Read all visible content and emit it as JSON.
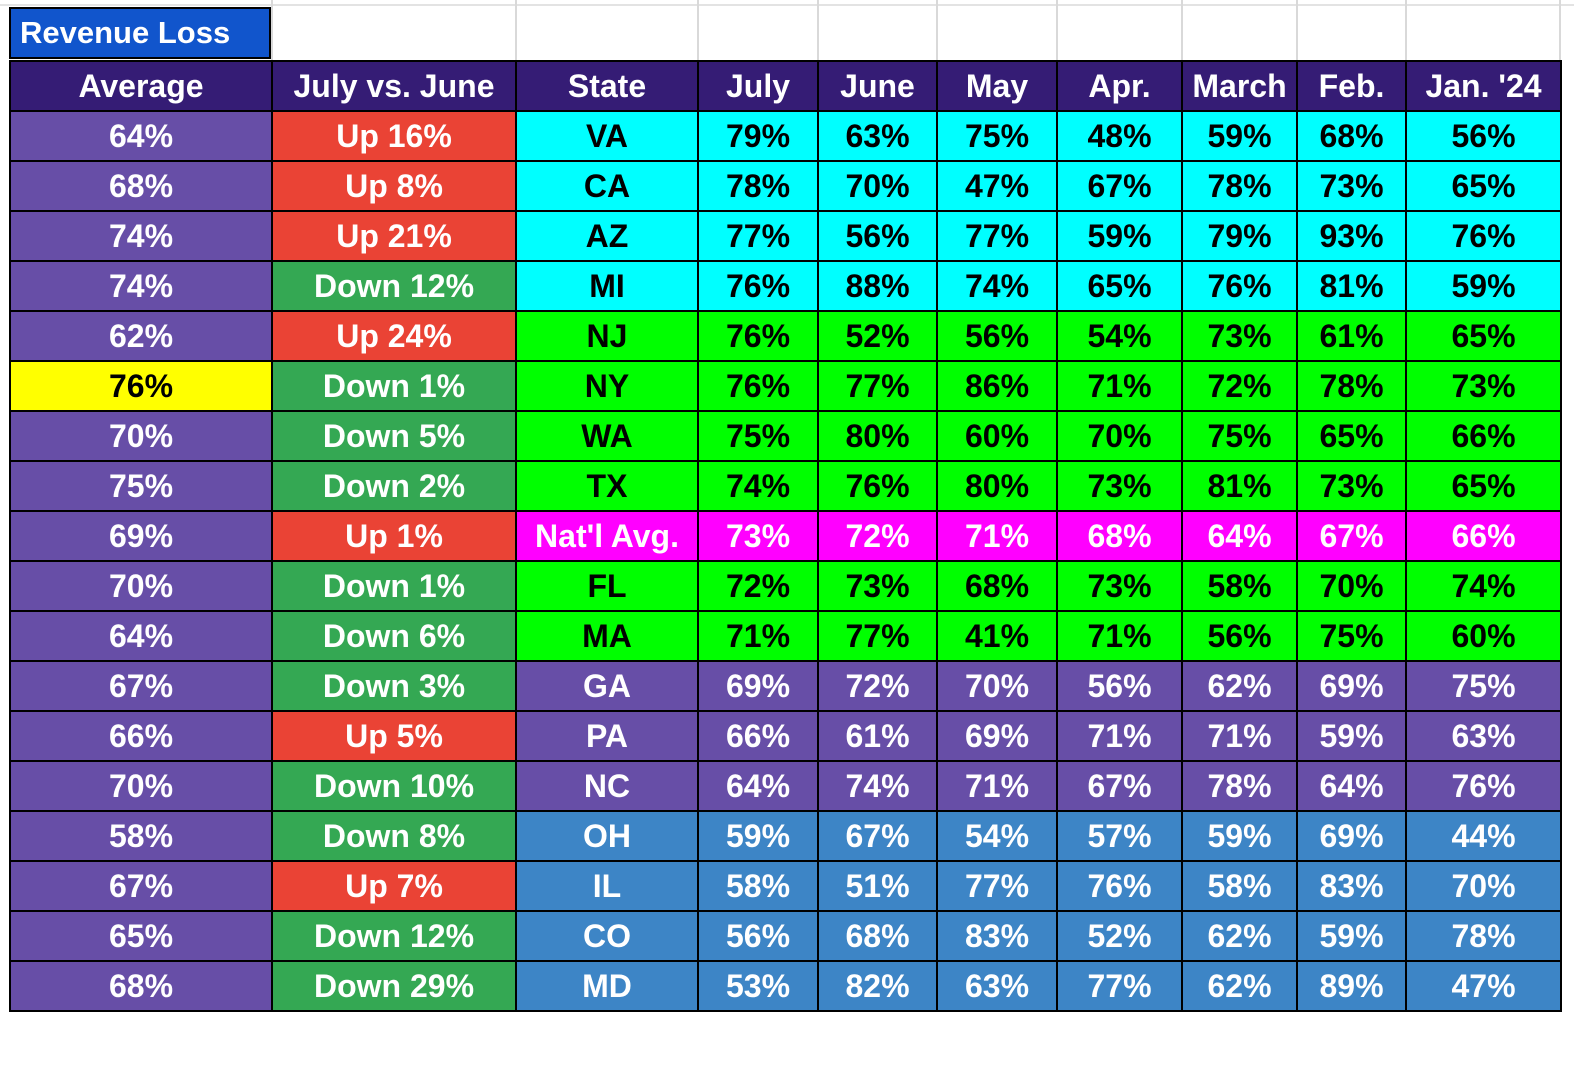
{
  "title": "Revenue Loss",
  "headers": [
    "Average",
    "July vs. June",
    "State",
    "July",
    "June",
    "May",
    "Apr.",
    "March",
    "Feb.",
    "Jan. '24"
  ],
  "colors": {
    "header": "#351c75",
    "average": "#674ea7",
    "average_highlight": "#ffff00",
    "up": "#ea4335",
    "down": "#34a853",
    "cyan": "#00ffff",
    "green": "#00ff00",
    "magenta": "#ff00ff",
    "purple": "#674ea7",
    "blue": "#3d85c6"
  },
  "rows": [
    {
      "avg": "64%",
      "change": "Up 16%",
      "dir": "up",
      "state": "VA",
      "group": "cyan",
      "months": [
        "79%",
        "63%",
        "75%",
        "48%",
        "59%",
        "68%",
        "56%"
      ]
    },
    {
      "avg": "68%",
      "change": "Up 8%",
      "dir": "up",
      "state": "CA",
      "group": "cyan",
      "months": [
        "78%",
        "70%",
        "47%",
        "67%",
        "78%",
        "73%",
        "65%"
      ]
    },
    {
      "avg": "74%",
      "change": "Up 21%",
      "dir": "up",
      "state": "AZ",
      "group": "cyan",
      "months": [
        "77%",
        "56%",
        "77%",
        "59%",
        "79%",
        "93%",
        "76%"
      ]
    },
    {
      "avg": "74%",
      "change": "Down 12%",
      "dir": "down",
      "state": "MI",
      "group": "cyan",
      "months": [
        "76%",
        "88%",
        "74%",
        "65%",
        "76%",
        "81%",
        "59%"
      ]
    },
    {
      "avg": "62%",
      "change": "Up 24%",
      "dir": "up",
      "state": "NJ",
      "group": "green",
      "months": [
        "76%",
        "52%",
        "56%",
        "54%",
        "73%",
        "61%",
        "65%"
      ]
    },
    {
      "avg": "76%",
      "change": "Down 1%",
      "dir": "down",
      "state": "NY",
      "group": "green",
      "highlight": true,
      "months": [
        "76%",
        "77%",
        "86%",
        "71%",
        "72%",
        "78%",
        "73%"
      ]
    },
    {
      "avg": "70%",
      "change": "Down 5%",
      "dir": "down",
      "state": "WA",
      "group": "green",
      "months": [
        "75%",
        "80%",
        "60%",
        "70%",
        "75%",
        "65%",
        "66%"
      ]
    },
    {
      "avg": "75%",
      "change": "Down 2%",
      "dir": "down",
      "state": "TX",
      "group": "green",
      "months": [
        "74%",
        "76%",
        "80%",
        "73%",
        "81%",
        "73%",
        "65%"
      ]
    },
    {
      "avg": "69%",
      "change": "Up 1%",
      "dir": "up",
      "state": "Nat'l Avg.",
      "group": "magenta",
      "months": [
        "73%",
        "72%",
        "71%",
        "68%",
        "64%",
        "67%",
        "66%"
      ]
    },
    {
      "avg": "70%",
      "change": "Down 1%",
      "dir": "down",
      "state": "FL",
      "group": "green",
      "months": [
        "72%",
        "73%",
        "68%",
        "73%",
        "58%",
        "70%",
        "74%"
      ]
    },
    {
      "avg": "64%",
      "change": "Down 6%",
      "dir": "down",
      "state": "MA",
      "group": "green",
      "months": [
        "71%",
        "77%",
        "41%",
        "71%",
        "56%",
        "75%",
        "60%"
      ]
    },
    {
      "avg": "67%",
      "change": "Down 3%",
      "dir": "down",
      "state": "GA",
      "group": "purple",
      "months": [
        "69%",
        "72%",
        "70%",
        "56%",
        "62%",
        "69%",
        "75%"
      ]
    },
    {
      "avg": "66%",
      "change": "Up 5%",
      "dir": "up",
      "state": "PA",
      "group": "purple",
      "months": [
        "66%",
        "61%",
        "69%",
        "71%",
        "71%",
        "59%",
        "63%"
      ]
    },
    {
      "avg": "70%",
      "change": "Down 10%",
      "dir": "down",
      "state": "NC",
      "group": "purple",
      "months": [
        "64%",
        "74%",
        "71%",
        "67%",
        "78%",
        "64%",
        "76%"
      ]
    },
    {
      "avg": "58%",
      "change": "Down 8%",
      "dir": "down",
      "state": "OH",
      "group": "blue",
      "months": [
        "59%",
        "67%",
        "54%",
        "57%",
        "59%",
        "69%",
        "44%"
      ]
    },
    {
      "avg": "67%",
      "change": "Up 7%",
      "dir": "up",
      "state": "IL",
      "group": "blue",
      "months": [
        "58%",
        "51%",
        "77%",
        "76%",
        "58%",
        "83%",
        "70%"
      ]
    },
    {
      "avg": "65%",
      "change": "Down 12%",
      "dir": "down",
      "state": "CO",
      "group": "blue",
      "months": [
        "56%",
        "68%",
        "83%",
        "52%",
        "62%",
        "59%",
        "78%"
      ]
    },
    {
      "avg": "68%",
      "change": "Down 29%",
      "dir": "down",
      "state": "MD",
      "group": "blue",
      "months": [
        "53%",
        "82%",
        "63%",
        "77%",
        "62%",
        "89%",
        "47%"
      ]
    }
  ]
}
